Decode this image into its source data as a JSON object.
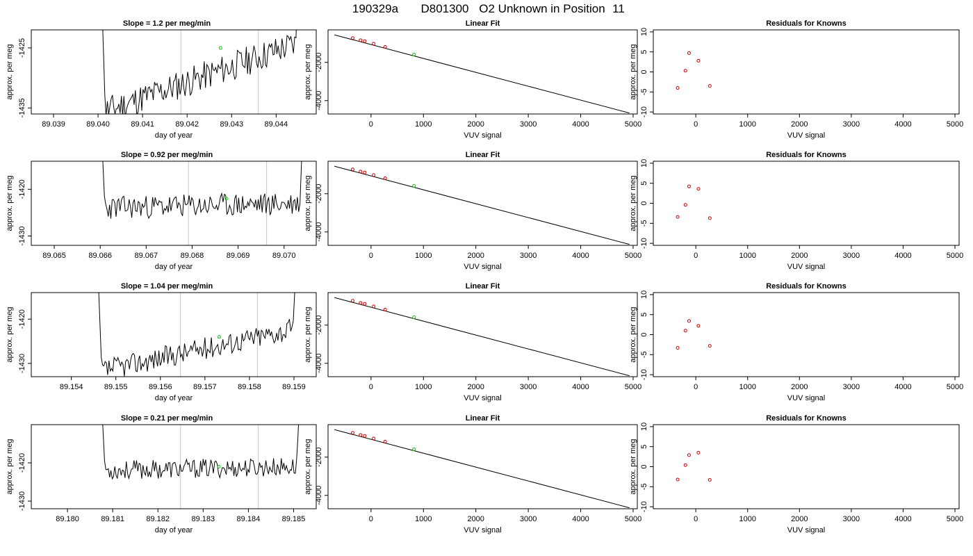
{
  "header": {
    "title_parts": [
      "190329a",
      "D801300",
      "O2 Unknown in Position",
      "11"
    ]
  },
  "colors": {
    "trace": "#000000",
    "vline": "#c8c8c8",
    "unknown_point": "#00cc00",
    "known_point": "#cc0000",
    "fit_line": "#000000"
  },
  "rows": [
    {
      "time_panel": {
        "title_prefix": "Slope =",
        "slope": "1.2",
        "title_suffix": "per meg/min",
        "xlabel": "day of year",
        "ylabel": "approx. per meg",
        "xticks": [
          "89.039",
          "89.040",
          "89.041",
          "89.042",
          "89.043",
          "89.044"
        ],
        "yticks": [
          "-1425",
          "-1435"
        ],
        "xlim": [
          89.0385,
          89.0449
        ],
        "ylim": [
          -1436,
          -1422
        ],
        "vlines": [
          89.04186,
          89.0436
        ],
        "unknown_point": {
          "x": 89.04275,
          "y": -1425.0
        },
        "trace_start": 89.03998,
        "trace_end": 89.04456,
        "baseline": [
          -1436,
          -1424
        ],
        "seed": 11
      },
      "fit_panel": {
        "title": "Linear Fit",
        "xlabel": "VUV signal",
        "ylabel": "approx. per meg",
        "xticks": [
          "0",
          "1000",
          "2000",
          "3000",
          "4000",
          "5000"
        ],
        "yticks": [
          "-2000",
          "-4000"
        ],
        "xlim": [
          -820,
          5080
        ],
        "ylim": [
          -4700,
          -300
        ],
        "line": {
          "x": [
            -700,
            4930
          ],
          "y": [
            -560,
            -4650
          ]
        },
        "knowns": [
          {
            "x": -350,
            "y": -727
          },
          {
            "x": -200,
            "y": -839
          },
          {
            "x": -120,
            "y": -889
          },
          {
            "x": 50,
            "y": -1023
          },
          {
            "x": 270,
            "y": -1186
          }
        ],
        "unknown": {
          "x": 820,
          "y": -1588
        }
      },
      "resid_panel": {
        "title": "Residuals for Knowns",
        "xlabel": "VUV signal",
        "ylabel": "approx. per meg",
        "xticks": [
          "0",
          "1000",
          "2000",
          "3000",
          "4000",
          "5000"
        ],
        "yticks": [
          "10",
          "5",
          "0",
          "-5",
          "-10"
        ],
        "xlim": [
          -820,
          5080
        ],
        "ylim": [
          -10.5,
          10.5
        ],
        "points": [
          {
            "x": -350,
            "y": -4.0
          },
          {
            "x": -200,
            "y": 0.3
          },
          {
            "x": -130,
            "y": 4.7
          },
          {
            "x": 50,
            "y": 2.8
          },
          {
            "x": 270,
            "y": -3.5
          }
        ]
      }
    },
    {
      "time_panel": {
        "title_prefix": "Slope =",
        "slope": "0.92",
        "title_suffix": "per meg/min",
        "xlabel": "day of year",
        "ylabel": "approx. per meg",
        "xticks": [
          "89.065",
          "89.066",
          "89.067",
          "89.068",
          "89.069",
          "89.070"
        ],
        "yticks": [
          "-1420",
          "-1430"
        ],
        "xlim": [
          89.0645,
          89.0707
        ],
        "ylim": [
          -1432,
          -1414
        ],
        "vlines": [
          89.06792,
          89.06962
        ],
        "unknown_point": {
          "x": 89.06875,
          "y": -1422.0
        },
        "trace_start": 89.06592,
        "trace_end": 89.07046,
        "baseline": [
          -1424,
          -1423
        ],
        "seed": 23
      },
      "fit_panel": {
        "title": "Linear Fit",
        "xlabel": "VUV signal",
        "ylabel": "approx. per meg",
        "xticks": [
          "0",
          "1000",
          "2000",
          "3000",
          "4000",
          "5000"
        ],
        "yticks": [
          "-2000",
          "-4000"
        ],
        "xlim": [
          -820,
          5080
        ],
        "ylim": [
          -4700,
          -300
        ],
        "line": {
          "x": [
            -700,
            4930
          ],
          "y": [
            -560,
            -4650
          ]
        },
        "knowns": [
          {
            "x": -350,
            "y": -727
          },
          {
            "x": -200,
            "y": -839
          },
          {
            "x": -120,
            "y": -889
          },
          {
            "x": 50,
            "y": -1023
          },
          {
            "x": 270,
            "y": -1186
          }
        ],
        "unknown": {
          "x": 820,
          "y": -1588
        }
      },
      "resid_panel": {
        "title": "Residuals for Knowns",
        "xlabel": "VUV signal",
        "ylabel": "approx. per meg",
        "xticks": [
          "0",
          "1000",
          "2000",
          "3000",
          "4000",
          "5000"
        ],
        "yticks": [
          "10",
          "5",
          "0",
          "-5",
          "-10"
        ],
        "xlim": [
          -820,
          5080
        ],
        "ylim": [
          -10.5,
          10.5
        ],
        "points": [
          {
            "x": -350,
            "y": -3.4
          },
          {
            "x": -200,
            "y": -0.4
          },
          {
            "x": -130,
            "y": 4.2
          },
          {
            "x": 50,
            "y": 3.6
          },
          {
            "x": 270,
            "y": -3.7
          }
        ]
      }
    },
    {
      "time_panel": {
        "title_prefix": "Slope =",
        "slope": "1.04",
        "title_suffix": "per meg/min",
        "xlabel": "day of year",
        "ylabel": "approx. per meg",
        "xticks": [
          "89.154",
          "89.155",
          "89.156",
          "89.157",
          "89.158",
          "89.159"
        ],
        "yticks": [
          "-1420",
          "-1430"
        ],
        "xlim": [
          89.1531,
          89.1595
        ],
        "ylim": [
          -1433,
          -1414
        ],
        "vlines": [
          89.15645,
          89.15818
        ],
        "unknown_point": {
          "x": 89.15732,
          "y": -1424.0
        },
        "trace_start": 89.1545,
        "trace_end": 89.1591,
        "baseline": [
          -1432,
          -1422
        ],
        "seed": 37
      },
      "fit_panel": {
        "title": "Linear Fit",
        "xlabel": "VUV signal",
        "ylabel": "approx. per meg",
        "xticks": [
          "0",
          "1000",
          "2000",
          "3000",
          "4000",
          "5000"
        ],
        "yticks": [
          "-2000",
          "-4000"
        ],
        "xlim": [
          -820,
          5080
        ],
        "ylim": [
          -4700,
          -300
        ],
        "line": {
          "x": [
            -700,
            4930
          ],
          "y": [
            -560,
            -4650
          ]
        },
        "knowns": [
          {
            "x": -350,
            "y": -727
          },
          {
            "x": -200,
            "y": -839
          },
          {
            "x": -120,
            "y": -889
          },
          {
            "x": 50,
            "y": -1023
          },
          {
            "x": 270,
            "y": -1186
          }
        ],
        "unknown": {
          "x": 820,
          "y": -1588
        }
      },
      "resid_panel": {
        "title": "Residuals for Knowns",
        "xlabel": "VUV signal",
        "ylabel": "approx. per meg",
        "xticks": [
          "0",
          "1000",
          "2000",
          "3000",
          "4000",
          "5000"
        ],
        "yticks": [
          "10",
          "5",
          "0",
          "-5",
          "-10"
        ],
        "xlim": [
          -820,
          5080
        ],
        "ylim": [
          -10.5,
          10.5
        ],
        "points": [
          {
            "x": -350,
            "y": -3.3
          },
          {
            "x": -200,
            "y": 1.0
          },
          {
            "x": -130,
            "y": 3.4
          },
          {
            "x": 50,
            "y": 2.2
          },
          {
            "x": 270,
            "y": -2.8
          }
        ]
      }
    },
    {
      "time_panel": {
        "title_prefix": "Slope =",
        "slope": "0.21",
        "title_suffix": "per meg/min",
        "xlabel": "day of year",
        "ylabel": "approx. per meg",
        "xticks": [
          "89.180",
          "89.181",
          "89.182",
          "89.183",
          "89.184",
          "89.185"
        ],
        "yticks": [
          "-1420",
          "-1430"
        ],
        "xlim": [
          89.1792,
          89.1855
        ],
        "ylim": [
          -1432,
          -1410
        ],
        "vlines": [
          89.1825,
          89.18422
        ],
        "unknown_point": {
          "x": 89.18335,
          "y": -1421.0
        },
        "trace_start": 89.18065,
        "trace_end": 89.18518,
        "baseline": [
          -1422,
          -1421
        ],
        "seed": 53
      },
      "fit_panel": {
        "title": "Linear Fit",
        "xlabel": "VUV signal",
        "ylabel": "approx. per meg",
        "xticks": [
          "0",
          "1000",
          "2000",
          "3000",
          "4000",
          "5000"
        ],
        "yticks": [
          "-2000",
          "-4000"
        ],
        "xlim": [
          -820,
          5080
        ],
        "ylim": [
          -4700,
          -300
        ],
        "line": {
          "x": [
            -700,
            4930
          ],
          "y": [
            -560,
            -4650
          ]
        },
        "knowns": [
          {
            "x": -350,
            "y": -727
          },
          {
            "x": -200,
            "y": -839
          },
          {
            "x": -120,
            "y": -889
          },
          {
            "x": 50,
            "y": -1023
          },
          {
            "x": 270,
            "y": -1186
          }
        ],
        "unknown": {
          "x": 820,
          "y": -1588
        }
      },
      "resid_panel": {
        "title": "Residuals for Knowns",
        "xlabel": "VUV signal",
        "ylabel": "approx. per meg",
        "xticks": [
          "0",
          "1000",
          "2000",
          "3000",
          "4000",
          "5000"
        ],
        "yticks": [
          "10",
          "5",
          "0",
          "-5",
          "-10"
        ],
        "xlim": [
          -820,
          5080
        ],
        "ylim": [
          -10.5,
          10.5
        ],
        "points": [
          {
            "x": -350,
            "y": -3.2
          },
          {
            "x": -200,
            "y": 0.4
          },
          {
            "x": -130,
            "y": 2.9
          },
          {
            "x": 50,
            "y": 3.5
          },
          {
            "x": 270,
            "y": -3.3
          }
        ]
      }
    }
  ],
  "chart_data": [
    {
      "type": "line",
      "title": "Slope = 1.2 per meg/min",
      "xlabel": "day of year",
      "ylabel": "approx. per meg",
      "xlim": [
        89.0385,
        89.0449
      ],
      "ylim": [
        -1436,
        -1422
      ],
      "markers": [
        89.04186,
        89.0436
      ],
      "unknown": {
        "x": 89.04275,
        "y": -1425.0
      }
    },
    {
      "type": "line",
      "title": "Linear Fit",
      "xlabel": "VUV signal",
      "ylabel": "approx. per meg",
      "line": {
        "x": [
          -700,
          4930
        ],
        "y": [
          -560,
          -4650
        ]
      },
      "knowns_x": [
        -350,
        -200,
        -120,
        50,
        270
      ],
      "knowns_y": [
        -727,
        -839,
        -889,
        -1023,
        -1186
      ],
      "unknown": {
        "x": 820,
        "y": -1588
      }
    },
    {
      "type": "scatter",
      "title": "Residuals for Knowns",
      "xlabel": "VUV signal",
      "ylabel": "approx. per meg",
      "x": [
        -350,
        -200,
        -130,
        50,
        270
      ],
      "y": [
        -4.0,
        0.3,
        4.7,
        2.8,
        -3.5
      ]
    },
    {
      "type": "line",
      "title": "Slope = 0.92 per meg/min",
      "xlabel": "day of year",
      "ylabel": "approx. per meg",
      "xlim": [
        89.0645,
        89.0707
      ],
      "ylim": [
        -1432,
        -1414
      ],
      "markers": [
        89.06792,
        89.06962
      ],
      "unknown": {
        "x": 89.06875,
        "y": -1422.0
      }
    },
    {
      "type": "scatter",
      "title": "Residuals for Knowns",
      "x": [
        -350,
        -200,
        -130,
        50,
        270
      ],
      "y": [
        -3.4,
        -0.4,
        4.2,
        3.6,
        -3.7
      ]
    },
    {
      "type": "line",
      "title": "Slope = 1.04 per meg/min",
      "xlabel": "day of year",
      "ylabel": "approx. per meg",
      "xlim": [
        89.1531,
        89.1595
      ],
      "ylim": [
        -1433,
        -1414
      ],
      "markers": [
        89.15645,
        89.15818
      ],
      "unknown": {
        "x": 89.15732,
        "y": -1424.0
      }
    },
    {
      "type": "scatter",
      "title": "Residuals for Knowns",
      "x": [
        -350,
        -200,
        -130,
        50,
        270
      ],
      "y": [
        -3.3,
        1.0,
        3.4,
        2.2,
        -2.8
      ]
    },
    {
      "type": "line",
      "title": "Slope = 0.21 per meg/min",
      "xlabel": "day of year",
      "ylabel": "approx. per meg",
      "xlim": [
        89.1792,
        89.1855
      ],
      "ylim": [
        -1432,
        -1410
      ],
      "markers": [
        89.1825,
        89.18422
      ],
      "unknown": {
        "x": 89.18335,
        "y": -1421.0
      }
    },
    {
      "type": "scatter",
      "title": "Residuals for Knowns",
      "x": [
        -350,
        -200,
        -130,
        50,
        270
      ],
      "y": [
        -3.2,
        0.4,
        2.9,
        3.5,
        -3.3
      ]
    }
  ]
}
